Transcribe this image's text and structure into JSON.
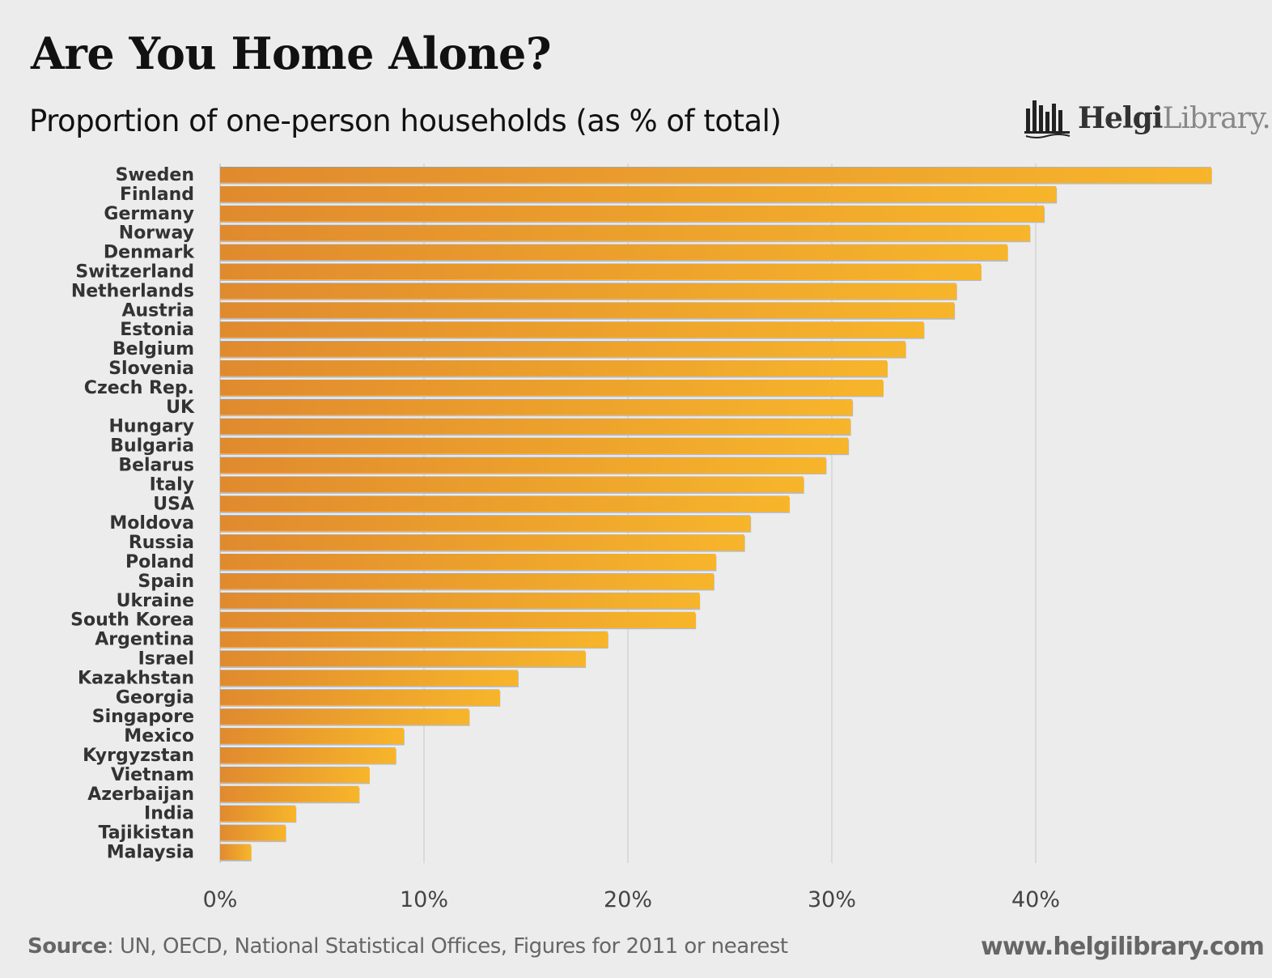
{
  "header": {
    "title": "Are You Home Alone?",
    "subtitle": "Proportion of one-person households (as % of total)"
  },
  "logo": {
    "name_bold": "Helgi",
    "name_light": "Library.",
    "icon": "library-columns-icon"
  },
  "footer": {
    "source_label": "Source",
    "source_text": ": UN, OECD, National Statistical Offices, Figures for 2011 or nearest",
    "website": "www.helgilibrary.com"
  },
  "colors": {
    "bar_start": "#e08a2e",
    "bar_end": "#f7b52b",
    "grid": "#c8c8c8",
    "background": "#ececec"
  },
  "chart_data": {
    "type": "bar",
    "orientation": "horizontal",
    "title": "Proportion of one-person households (as % of total)",
    "xlabel": "",
    "ylabel": "",
    "xlim": [
      0,
      50
    ],
    "xticks": [
      0,
      10,
      20,
      30,
      40
    ],
    "xtick_labels": [
      "0%",
      "10%",
      "20%",
      "30%",
      "40%"
    ],
    "grid": true,
    "categories": [
      "Sweden",
      "Finland",
      "Germany",
      "Norway",
      "Denmark",
      "Switzerland",
      "Netherlands",
      "Austria",
      "Estonia",
      "Belgium",
      "Slovenia",
      "Czech Rep.",
      "UK",
      "Hungary",
      "Bulgaria",
      "Belarus",
      "Italy",
      "USA",
      "Moldova",
      "Russia",
      "Poland",
      "Spain",
      "Ukraine",
      "South Korea",
      "Argentina",
      "Israel",
      "Kazakhstan",
      "Georgia",
      "Singapore",
      "Mexico",
      "Kyrgyzstan",
      "Vietnam",
      "Azerbaijan",
      "India",
      "Tajikistan",
      "Malaysia"
    ],
    "values": [
      48.6,
      41.0,
      40.4,
      39.7,
      38.6,
      37.3,
      36.1,
      36.0,
      34.5,
      33.6,
      32.7,
      32.5,
      31.0,
      30.9,
      30.8,
      29.7,
      28.6,
      27.9,
      26.0,
      25.7,
      24.3,
      24.2,
      23.5,
      23.3,
      19.0,
      17.9,
      14.6,
      13.7,
      12.2,
      9.0,
      8.6,
      7.3,
      6.8,
      3.7,
      3.2,
      1.5
    ]
  }
}
